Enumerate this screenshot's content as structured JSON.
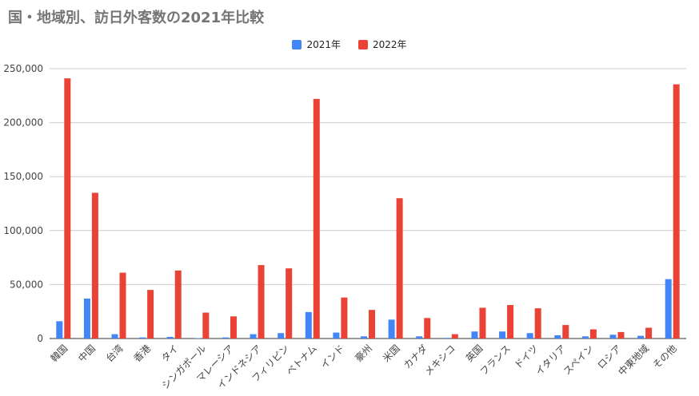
{
  "chart_data": {
    "type": "bar",
    "title": "国・地域別、訪日外客数の2021年比較",
    "legend_position": "top-center",
    "grid": true,
    "ylim": [
      0,
      250000
    ],
    "yticks": [
      0,
      50000,
      100000,
      150000,
      200000,
      250000
    ],
    "ytick_labels": [
      "0",
      "50,000",
      "100,000",
      "150,000",
      "200,000",
      "250,000"
    ],
    "categories": [
      "韓国",
      "中国",
      "台湾",
      "香港",
      "タイ",
      "シンガポール",
      "マレーシア",
      "インドネシア",
      "フィリピン",
      "ベトナム",
      "インド",
      "豪州",
      "米国",
      "カナダ",
      "メキシコ",
      "英国",
      "フランス",
      "ドイツ",
      "イタリア",
      "スペイン",
      "ロシア",
      "中東地域",
      "その他"
    ],
    "series": [
      {
        "name": "2021年",
        "color": "#4285F4",
        "values": [
          16000,
          37000,
          4000,
          1000,
          1500,
          300,
          1000,
          4000,
          5000,
          24500,
          5500,
          2000,
          17500,
          2000,
          600,
          6500,
          6500,
          5000,
          3000,
          2000,
          3500,
          2500,
          55000
        ]
      },
      {
        "name": "2022年",
        "color": "#EA4335",
        "values": [
          241000,
          135000,
          61000,
          45000,
          63000,
          24000,
          20500,
          68000,
          65000,
          222000,
          38000,
          26500,
          130000,
          19000,
          4000,
          28500,
          31000,
          28000,
          12500,
          8500,
          6000,
          10000,
          235500
        ]
      }
    ]
  }
}
